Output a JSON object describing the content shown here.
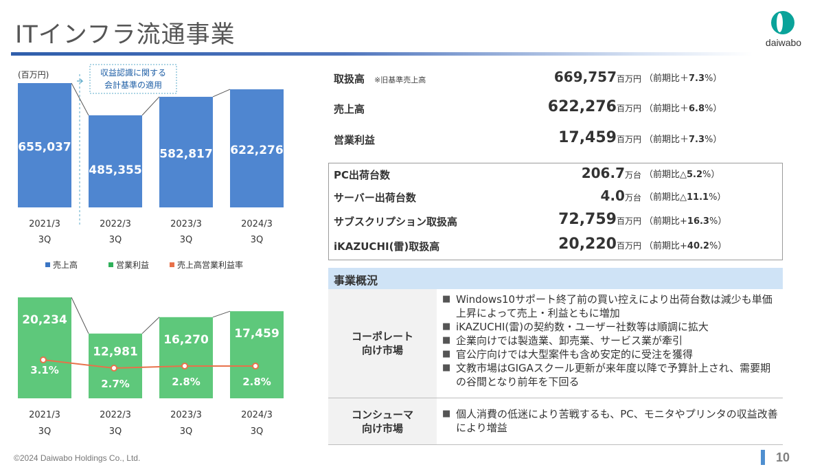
{
  "header": {
    "title": "ITインフラ流通事業",
    "logo_text": "daiwabo"
  },
  "colors": {
    "sales_bar": "#4f86d0",
    "profit_bar": "#5ec87b",
    "margin_line": "#e8714a",
    "header_band": "#cfe3f6",
    "title_line": "#2f5eab"
  },
  "chart_data": [
    {
      "type": "bar",
      "unit_label": "(百万円)",
      "categories": [
        "2021/3 3Q",
        "2022/3 3Q",
        "2023/3 3Q",
        "2024/3 3Q"
      ],
      "category_lines": [
        [
          "2021/3",
          "3Q"
        ],
        [
          "2022/3",
          "3Q"
        ],
        [
          "2023/3",
          "3Q"
        ],
        [
          "2024/3",
          "3Q"
        ]
      ],
      "series": [
        {
          "name": "売上高",
          "values": [
            655037,
            485355,
            582817,
            622276
          ],
          "labels": [
            "655,037",
            "485,355",
            "582,817",
            "622,276"
          ]
        }
      ],
      "ylim": [
        0,
        680000
      ],
      "annotation": "収益認識に関する会計基準の適用",
      "annotation_lines": [
        "収益認識に関する",
        "会計基準の適用"
      ],
      "grid": false
    },
    {
      "type": "bar",
      "categories": [
        "2021/3 3Q",
        "2022/3 3Q",
        "2023/3 3Q",
        "2024/3 3Q"
      ],
      "category_lines": [
        [
          "2021/3",
          "3Q"
        ],
        [
          "2022/3",
          "3Q"
        ],
        [
          "2023/3",
          "3Q"
        ],
        [
          "2024/3",
          "3Q"
        ]
      ],
      "series": [
        {
          "name": "営業利益",
          "type": "bar",
          "values": [
            20234,
            12981,
            16270,
            17459
          ],
          "labels": [
            "20,234",
            "12,981",
            "16,270",
            "17,459"
          ]
        },
        {
          "name": "売上高営業利益率",
          "type": "line",
          "values": [
            3.1,
            2.7,
            2.8,
            2.8
          ],
          "labels": [
            "3.1%",
            "2.7%",
            "2.8%",
            "2.8%"
          ]
        }
      ],
      "ylim": [
        0,
        20234
      ],
      "grid": false
    }
  ],
  "legend": {
    "items": [
      {
        "name": "売上高",
        "color": "#3a75c4"
      },
      {
        "name": "営業利益",
        "color": "#2fb05a"
      },
      {
        "name": "売上高営業利益率",
        "color": "#e8714a"
      }
    ]
  },
  "kpis": [
    {
      "label": "取扱高",
      "note": "※旧基準売上高",
      "value": "669,757",
      "unit": "百万円",
      "change_prefix": "（前期比＋",
      "change_value": "7.3",
      "change_suffix": "%）"
    },
    {
      "label": "売上高",
      "note": "",
      "value": "622,276",
      "unit": "百万円",
      "change_prefix": "（前期比＋",
      "change_value": "6.8",
      "change_suffix": "%）"
    },
    {
      "label": "営業利益",
      "note": "",
      "value": "17,459",
      "unit": "百万円",
      "change_prefix": "（前期比＋",
      "change_value": "7.3",
      "change_suffix": "%）"
    }
  ],
  "kpis_boxed": [
    {
      "label": "PC出荷台数",
      "value": "206.7",
      "unit": "万台",
      "change_prefix": "（前期比△",
      "change_value": "5.2",
      "change_suffix": "%）"
    },
    {
      "label": "サーバー出荷台数",
      "value": "4.0",
      "unit": "万台",
      "change_prefix": "（前期比△",
      "change_value": "11.1",
      "change_suffix": "%）"
    },
    {
      "label": "サブスクリプション取扱高",
      "value": "72,759",
      "unit": "百万円",
      "change_prefix": "（前期比+",
      "change_value": "16.3",
      "change_suffix": "%）"
    },
    {
      "label": "iKAZUCHI(雷)取扱高",
      "value": "20,220",
      "unit": "百万円",
      "change_prefix": "（前期比+",
      "change_value": "40.2",
      "change_suffix": "%）"
    }
  ],
  "overview": {
    "title": "事業概況",
    "rows": [
      {
        "category_lines": [
          "コーポレート",
          "向け市場"
        ],
        "items": [
          "Windows10サポート終了前の買い控えにより出荷台数は減少も単価上昇によって売上・利益ともに増加",
          "iKAZUCHI(雷)の契約数・ユーザー社数等は順調に拡大",
          "企業向けでは製造業、卸売業、サービス業が牽引",
          "官公庁向けでは大型案件も含め安定的に受注を獲得",
          "文教市場はGIGAスクール更新が来年度以降で予算計上され、需要期の谷間となり前年を下回る"
        ]
      },
      {
        "category_lines": [
          "コンシューマ",
          "向け市場"
        ],
        "items": [
          "個人消費の低迷により苦戦するも、PC、モニタやプリンタの収益改善により増益"
        ]
      }
    ]
  },
  "footer": {
    "copyright": "©2024 Daiwabo Holdings Co., Ltd.",
    "page": "10"
  }
}
